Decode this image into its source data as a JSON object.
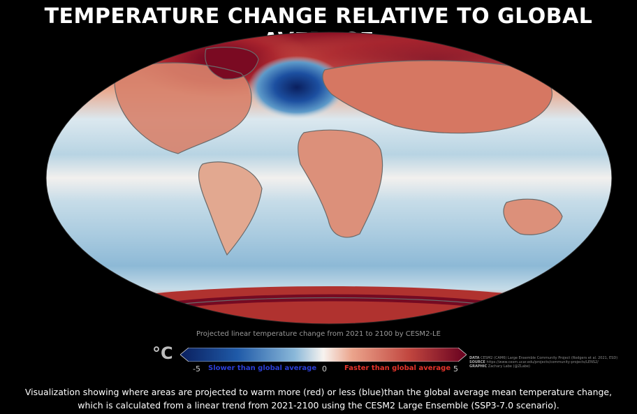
{
  "title": "TEMPERATURE CHANGE RELATIVE TO GLOBAL AVERAGE",
  "map": {
    "projection_subtitle": "Projected linear temperature change from 2021 to 2100 by CESM2-LE",
    "colors": {
      "strong_red": "#67001f",
      "red": "#c1463f",
      "light_red": "#e9a98f",
      "white": "#f7f3ef",
      "light_blue": "#bcd6e4",
      "blue": "#5d9ac9",
      "dark_blue": "#0a1f5e"
    }
  },
  "legend": {
    "unit": "°C",
    "min_label": "-5",
    "mid_label": "0",
    "max_label": "5",
    "slower_label": "Slower than global average",
    "faster_label": "Faster than global average",
    "range": [
      -5,
      5
    ]
  },
  "credits": {
    "data_label": "DATA",
    "data_text": "CESM2 (CAM6) Large Ensemble Community Project (Rodgers et al. 2021, ESD)",
    "source_label": "SOURCE",
    "source_text": "https://www.cesm.ucar.edu/projects/community-projects/LENS2/",
    "graphic_label": "GRAPHIC",
    "graphic_text": "Zachary Labe (@ZLabe)"
  },
  "description": {
    "line1": "Visualization showing where areas are projected to warm more (red) or less (blue)than the global average mean temperature change,",
    "line2": "which is calculated from a linear trend from 2021-2100 using the CESM2 Large Ensemble (SSP3-7.0 scenario)."
  }
}
